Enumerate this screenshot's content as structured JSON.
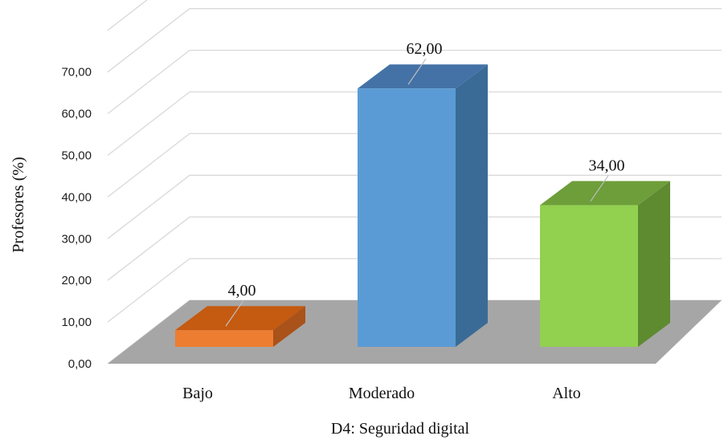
{
  "chart_data": {
    "type": "bar",
    "categories": [
      "Bajo",
      "Moderado",
      "Alto"
    ],
    "values": [
      4.0,
      62.0,
      34.0
    ],
    "data_labels": [
      "4,00",
      "62,00",
      "34,00"
    ],
    "ylabel": "Profesores (%)",
    "xlabel": "D4: Seguridad digital",
    "ylim": [
      0,
      70
    ],
    "yticks": [
      "0,00",
      "10,00",
      "20,00",
      "30,00",
      "40,00",
      "50,00",
      "60,00",
      "70,00"
    ],
    "grid": true,
    "three_d": true,
    "colors": {
      "bars": [
        {
          "front": "#ED7D31",
          "top": "#C55A11",
          "side": "#A9521A"
        },
        {
          "front": "#5B9BD5",
          "top": "#4472A6",
          "side": "#3A6B96"
        },
        {
          "front": "#92D050",
          "top": "#6E9E3A",
          "side": "#5E8A30"
        }
      ],
      "floor": "#A6A6A6",
      "grid": "#D9D9D9"
    }
  }
}
